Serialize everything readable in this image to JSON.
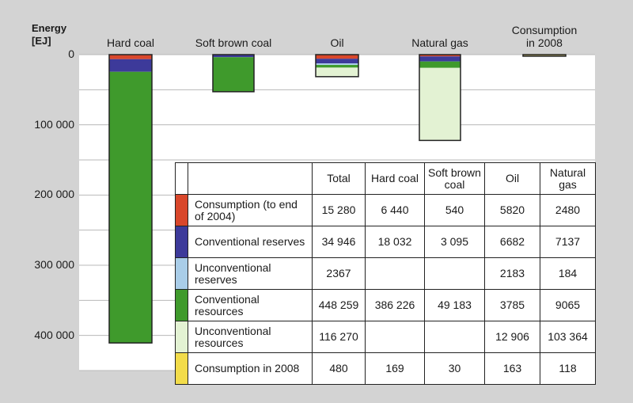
{
  "y_axis": {
    "title_line1": "Energy",
    "title_line2": "[EJ]"
  },
  "chart_data": {
    "type": "bar",
    "title": "",
    "ylabel": "Energy [EJ]",
    "ylim": [
      0,
      450000
    ],
    "y_inverted": true,
    "y_ticks": [
      0,
      100000,
      200000,
      300000,
      400000
    ],
    "y_tick_labels": [
      "0",
      "100 000",
      "200 000",
      "300 000",
      "400 000"
    ],
    "grid": true,
    "categories": [
      "Hard coal",
      "Soft brown coal",
      "Oil",
      "Natural gas",
      "Consumption in 2008"
    ],
    "series": [
      {
        "name": "Consumption (to end of 2004)",
        "color": "#d9472b",
        "values": [
          6440,
          540,
          5820,
          2480,
          0
        ]
      },
      {
        "name": "Conventional reserves",
        "color": "#3d3a9a",
        "values": [
          18032,
          3095,
          6682,
          7137,
          0
        ]
      },
      {
        "name": "Unconventional reserves",
        "color": "#a9cde8",
        "values": [
          0,
          0,
          2183,
          184,
          0
        ]
      },
      {
        "name": "Conventional resources",
        "color": "#3f9a2c",
        "values": [
          386226,
          49183,
          3785,
          9065,
          0
        ]
      },
      {
        "name": "Unconventional resources",
        "color": "#e3f2d3",
        "values": [
          0,
          0,
          12906,
          103364,
          0
        ]
      },
      {
        "name": "Consumption in 2008",
        "color": "#f2dc4a",
        "values": [
          0,
          0,
          0,
          0,
          480
        ]
      }
    ]
  },
  "table": {
    "headers": [
      "Total",
      "Hard coal",
      "Soft brown coal",
      "Oil",
      "Natural gas"
    ],
    "rows": [
      {
        "label": "Consumption (to end of 2004)",
        "color": "#d9472b",
        "values": [
          "15 280",
          "6 440",
          "540",
          "5820",
          "2480"
        ]
      },
      {
        "label": "Conventional reserves",
        "color": "#3d3a9a",
        "values": [
          "34 946",
          "18 032",
          "3 095",
          "6682",
          "7137"
        ]
      },
      {
        "label": "Unconventional reserves",
        "color": "#a9cde8",
        "values": [
          "2367",
          "",
          "",
          "2183",
          "184"
        ]
      },
      {
        "label": "Conventional resources",
        "color": "#3f9a2c",
        "values": [
          "448 259",
          "386 226",
          "49 183",
          "3785",
          "9065"
        ]
      },
      {
        "label": "Unconventional resources",
        "color": "#e3f2d3",
        "values": [
          "116 270",
          "",
          "",
          "12 906",
          "103 364"
        ]
      },
      {
        "label": "Consumption in 2008",
        "color": "#f2dc4a",
        "values": [
          "480",
          "169",
          "30",
          "163",
          "118"
        ]
      }
    ]
  }
}
